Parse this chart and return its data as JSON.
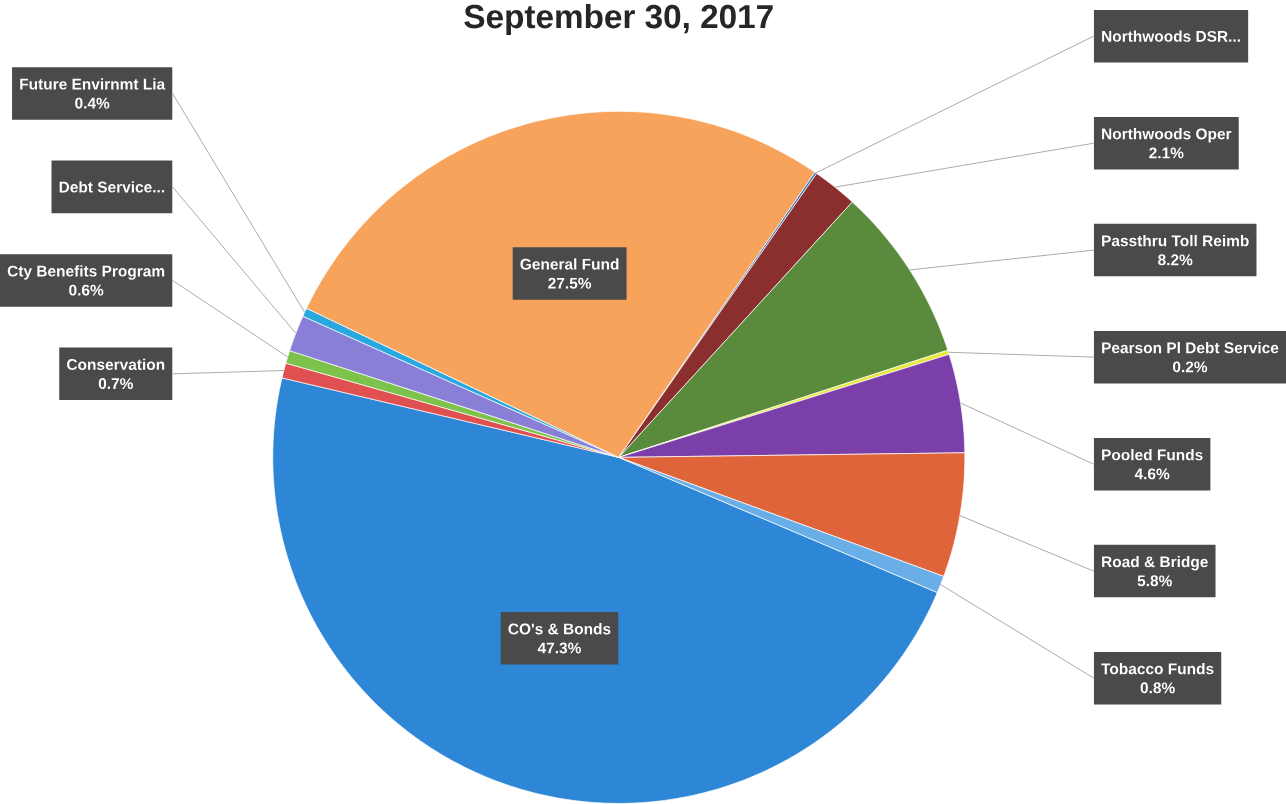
{
  "chart_data": {
    "type": "pie",
    "title": "September 30, 2017",
    "categories": [
      "CO's & Bonds",
      "Conservation",
      "Cty Benefits Program",
      "Debt Service...",
      "Future Envirnmt Lia",
      "General Fund",
      "Northwoods DSR...",
      "Northwoods Oper",
      "Passthru Toll Reimb",
      "Pearson Pl Debt Service",
      "Pooled Funds",
      "Road & Bridge",
      "Tobacco Funds"
    ],
    "values": [
      47.3,
      0.7,
      0.6,
      1.7,
      0.4,
      27.5,
      0.1,
      2.1,
      8.2,
      0.2,
      4.6,
      5.8,
      0.8
    ],
    "value_labels": [
      "47.3%",
      "0.7%",
      "0.6%",
      null,
      "0.4%",
      "27.5%",
      null,
      "2.1%",
      "8.2%",
      "0.2%",
      "4.6%",
      "5.8%",
      "0.8%"
    ],
    "colors": [
      "#2e86d6",
      "#e05050",
      "#7dc24b",
      "#8a7fd6",
      "#29a8e0",
      "#f7a35c",
      "#3b6fb0",
      "#8b2e2e",
      "#5a8a3c",
      "#e8e83c",
      "#7a3fa8",
      "#e0643a",
      "#6aaee8"
    ]
  }
}
